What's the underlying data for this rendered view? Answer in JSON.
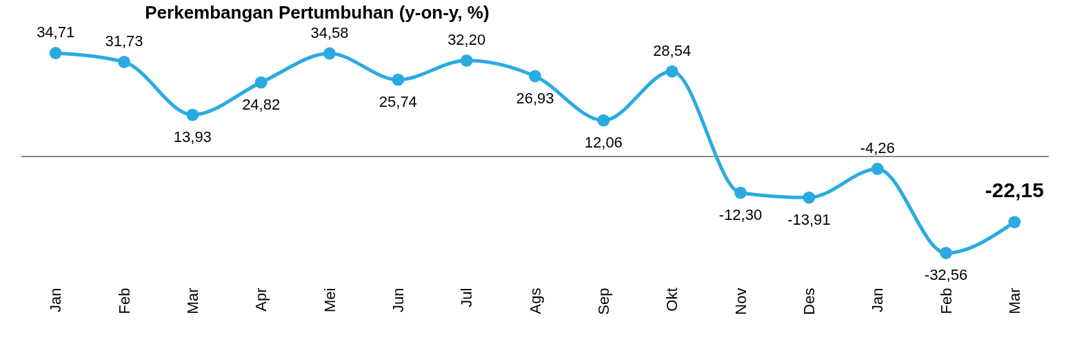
{
  "chart_data": {
    "type": "line",
    "title": "Perkembangan Pertumbuhan (y-on-y, %)",
    "categories": [
      "Jan",
      "Feb",
      "Mar",
      "Apr",
      "Mei",
      "Jun",
      "Jul",
      "Ags",
      "Sep",
      "Okt",
      "Nov",
      "Des",
      "Jan",
      "Feb",
      "Mar"
    ],
    "series": [
      {
        "color": "#29abe2",
        "values": [
          34.71,
          31.73,
          13.93,
          24.82,
          34.58,
          25.74,
          32.2,
          26.93,
          12.06,
          28.54,
          -12.3,
          -13.91,
          -4.26,
          -32.56,
          -22.15
        ],
        "value_labels": [
          "34,71",
          "31,73",
          "13,93",
          "24,82",
          "34,58",
          "25,74",
          "32,20",
          "26,93",
          "12,06",
          "28,54",
          "-12,30",
          "-13,91",
          "-4,26",
          "-32,56",
          "-22,15"
        ]
      }
    ],
    "marker": "circle",
    "grid": false,
    "legend": false,
    "tick_labels": "x"
  }
}
